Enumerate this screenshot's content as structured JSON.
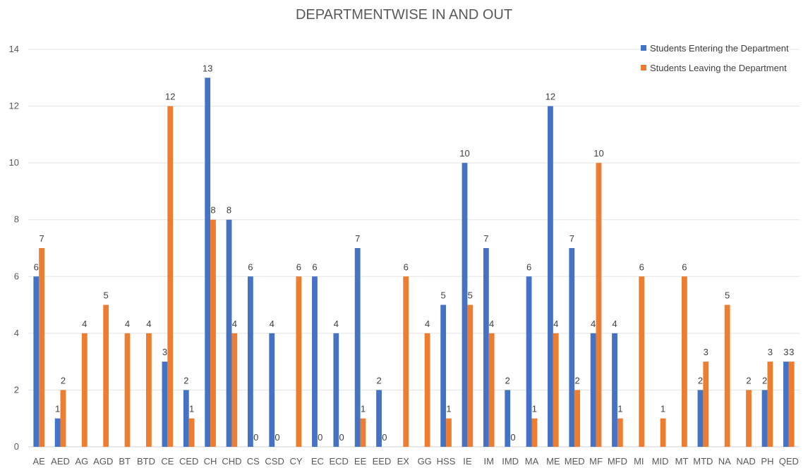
{
  "chart_data": {
    "type": "bar",
    "title": "DEPARTMENTWISE IN AND OUT",
    "xlabel": "",
    "ylabel": "",
    "ylim": [
      0,
      14
    ],
    "yticks": [
      0,
      2,
      4,
      6,
      8,
      10,
      12,
      14
    ],
    "grid": true,
    "legend_position": "top-right",
    "categories": [
      "AE",
      "AED",
      "AG",
      "AGD",
      "BT",
      "BTD",
      "CE",
      "CED",
      "CH",
      "CHD",
      "CS",
      "CSD",
      "CY",
      "EC",
      "ECD",
      "EE",
      "EED",
      "EX",
      "GG",
      "HSS",
      "IE",
      "IM",
      "IMD",
      "MA",
      "ME",
      "MED",
      "MF",
      "MFD",
      "MI",
      "MID",
      "MT",
      "MTD",
      "NA",
      "NAD",
      "PH",
      "QED"
    ],
    "series": [
      {
        "name": "Students Entering the Department",
        "color": "#4472C4",
        "values": [
          6,
          1,
          null,
          null,
          null,
          null,
          3,
          2,
          13,
          8,
          6,
          4,
          null,
          6,
          4,
          7,
          2,
          null,
          null,
          5,
          10,
          7,
          2,
          6,
          12,
          7,
          4,
          4,
          null,
          null,
          null,
          2,
          null,
          null,
          2,
          3
        ]
      },
      {
        "name": "Students Leaving the Department",
        "color": "#ED7D31",
        "values": [
          7,
          2,
          4,
          5,
          4,
          4,
          12,
          1,
          8,
          4,
          0,
          0,
          6,
          0,
          0,
          1,
          0,
          6,
          4,
          1,
          5,
          4,
          0,
          1,
          4,
          2,
          10,
          1,
          6,
          1,
          6,
          3,
          5,
          2,
          3,
          3
        ]
      }
    ]
  }
}
